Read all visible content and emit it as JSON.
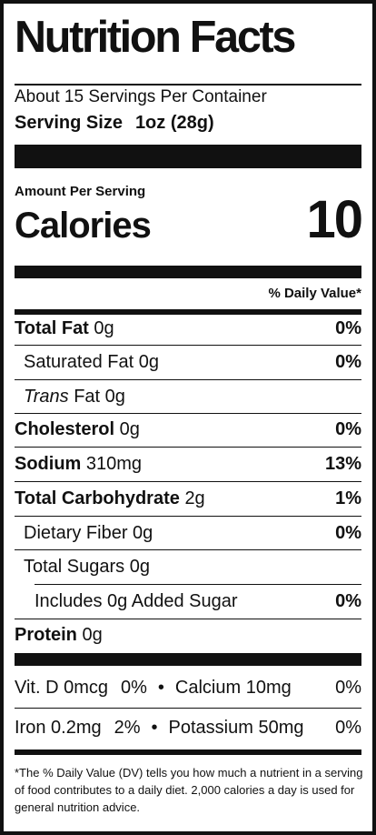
{
  "label": {
    "title": "Nutrition Facts",
    "servings_per_container": "About 15 Servings Per Container",
    "serving_size_label": "Serving Size",
    "serving_size_value": "1oz (28g)",
    "amount_per_serving": "Amount Per Serving",
    "calories_label": "Calories",
    "calories_value": "10",
    "daily_value_header": "% Daily Value*"
  },
  "nutrients": {
    "total_fat": {
      "name": "Total Fat",
      "amount": "0g",
      "dv": "0%"
    },
    "saturated_fat": {
      "name": "Saturated Fat 0g",
      "dv": "0%"
    },
    "trans_fat": {
      "name_italic": "Trans",
      "name_rest": "Fat 0g"
    },
    "cholesterol": {
      "name": "Cholesterol",
      "amount": "0g",
      "dv": "0%"
    },
    "sodium": {
      "name": "Sodium",
      "amount": "310mg",
      "dv": "13%"
    },
    "total_carbohydrate": {
      "name": "Total Carbohydrate",
      "amount": "2g",
      "dv": "1%"
    },
    "dietary_fiber": {
      "name": "Dietary Fiber 0g",
      "dv": "0%"
    },
    "total_sugars": {
      "name": "Total Sugars 0g"
    },
    "added_sugars": {
      "name": "Includes 0g Added Sugar",
      "dv": "0%"
    },
    "protein": {
      "name": "Protein",
      "amount": "0g"
    }
  },
  "vitamins": {
    "row1": {
      "left": "Vit. D 0mcg",
      "left_dv": "0%",
      "sep": "•",
      "right": "Calcium 10mg",
      "right_dv": "0%"
    },
    "row2": {
      "left": "Iron 0.2mg",
      "left_dv": "2%",
      "sep": "•",
      "right": "Potassium 50mg",
      "right_dv": "0%"
    }
  },
  "footnote": "*The % Daily Value (DV) tells you how much a nutrient in a serving of food contributes to a daily diet. 2,000 calories a day is used for general nutrition advice.",
  "colors": {
    "ink": "#111111",
    "background": "#ffffff"
  }
}
